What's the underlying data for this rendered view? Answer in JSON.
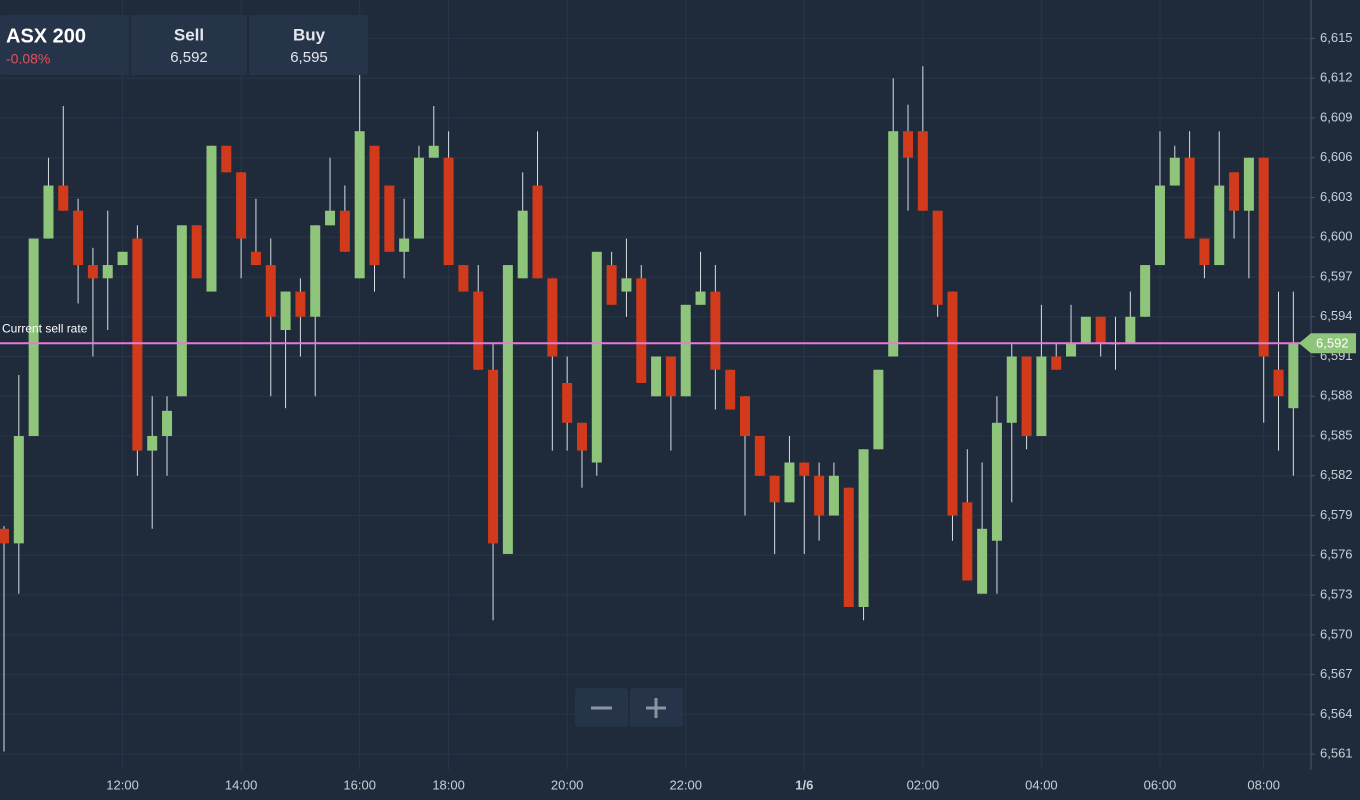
{
  "chart_data": {
    "type": "candlestick",
    "instrument": "ASX 200",
    "change": "-0.08%",
    "sell_label": "Sell",
    "sell": "6,592",
    "buy_label": "Buy",
    "buy": "6,595",
    "current_rate_label": "Current sell rate",
    "current_rate": {
      "value": 6592,
      "label": "6,592"
    },
    "up_color": "#8fc57a",
    "down_color": "#d13a1a",
    "current_rate_color": "#e879d9",
    "categories": [
      null,
      null,
      null,
      null,
      null,
      null,
      null,
      null,
      "12:00",
      null,
      null,
      null,
      null,
      null,
      null,
      null,
      "14:00",
      null,
      null,
      null,
      null,
      null,
      null,
      null,
      "16:00",
      null,
      null,
      null,
      null,
      null,
      "18:00",
      null,
      null,
      null,
      null,
      null,
      null,
      null,
      "20:00",
      null,
      null,
      null,
      null,
      null,
      null,
      null,
      "22:00",
      null,
      null,
      null,
      null,
      null,
      null,
      null,
      "1/6",
      null,
      null,
      null,
      null,
      null,
      null,
      null,
      "02:00",
      null,
      null,
      null,
      null,
      null,
      null,
      null,
      "04:00",
      null,
      null,
      null,
      null,
      null,
      null,
      null,
      "06:00",
      null,
      null,
      null,
      null,
      null,
      null,
      "08:00",
      null,
      null
    ],
    "open": [
      6578.0,
      6576.9,
      6585.0,
      6599.9,
      6603.9,
      6602.0,
      6597.9,
      6596.9,
      6597.9,
      6599.9,
      6583.9,
      6585.0,
      6588.0,
      6600.9,
      6595.9,
      6606.9,
      6604.9,
      6598.9,
      6597.9,
      6593.0,
      6595.9,
      6594.0,
      6600.9,
      6602.0,
      6596.9,
      6606.9,
      6603.9,
      6598.9,
      6599.9,
      6606.0,
      6606.0,
      6597.9,
      6595.9,
      6590.0,
      6576.1,
      6596.9,
      6603.9,
      6596.9,
      6589.0,
      6586.0,
      6583.0,
      6597.9,
      6595.9,
      6596.9,
      6588.0,
      6591.0,
      6588.0,
      6594.9,
      6595.9,
      6590.0,
      6588.0,
      6585.0,
      6582.0,
      6580.0,
      6583.0,
      6582.0,
      6579.0,
      6581.1,
      6572.1,
      6584.0,
      6591.0,
      6608.0,
      6608.0,
      6602.0,
      6595.9,
      6580.0,
      6573.1,
      6577.1,
      6586.0,
      6591.0,
      6585.0,
      6591.0,
      6591.0,
      6592.0,
      6594.0,
      6592.0,
      6592.0,
      6594.0,
      6597.9,
      6603.9,
      6606.0,
      6599.9,
      6597.9,
      6604.9,
      6602.0,
      6606.0,
      6590.0,
      6587.1
    ],
    "high": [
      6578.2,
      6589.6,
      6599.9,
      6606.0,
      6609.9,
      6602.9,
      6599.2,
      6602.0,
      6598.9,
      6600.9,
      6588.0,
      6588.0,
      6600.9,
      6600.9,
      6606.9,
      6606.9,
      6604.9,
      6602.9,
      6599.9,
      6595.9,
      6596.9,
      6600.9,
      6606.0,
      6603.9,
      6612.4,
      6606.9,
      6603.9,
      6602.9,
      6606.9,
      6609.9,
      6608.0,
      6597.9,
      6597.9,
      6592.0,
      6597.9,
      6604.9,
      6608.0,
      6596.9,
      6591.0,
      6586.0,
      6598.9,
      6598.9,
      6599.9,
      6597.9,
      6591.0,
      6591.0,
      6594.9,
      6598.9,
      6597.9,
      6590.0,
      6588.0,
      6585.0,
      6582.0,
      6585.0,
      6583.0,
      6583.0,
      6583.0,
      6581.1,
      6584.0,
      6590.0,
      6612.0,
      6610.0,
      6612.9,
      6602.0,
      6595.9,
      6584.0,
      6583.0,
      6588.0,
      6592.0,
      6591.0,
      6594.9,
      6592.0,
      6594.9,
      6594.0,
      6594.0,
      6594.0,
      6595.9,
      6597.9,
      6608.0,
      6606.9,
      6608.0,
      6599.9,
      6608.0,
      6604.9,
      6606.0,
      6606.0,
      6595.9,
      6595.9
    ],
    "low": [
      6561.2,
      6573.1,
      6585.0,
      6599.9,
      6602.0,
      6595.0,
      6591.0,
      6593.0,
      6597.9,
      6582.0,
      6578.0,
      6582.0,
      6588.0,
      6596.9,
      6595.9,
      6604.9,
      6596.9,
      6597.9,
      6588.0,
      6587.1,
      6591.0,
      6588.0,
      6600.9,
      6598.9,
      6596.9,
      6595.9,
      6598.9,
      6596.9,
      6599.9,
      6606.0,
      6597.9,
      6595.9,
      6590.0,
      6571.1,
      6576.1,
      6596.9,
      6596.9,
      6583.9,
      6583.9,
      6581.1,
      6582.0,
      6594.9,
      6594.0,
      6589.0,
      6588.0,
      6583.9,
      6588.0,
      6594.9,
      6587.0,
      6587.0,
      6579.0,
      6582.0,
      6576.1,
      6580.0,
      6576.1,
      6577.1,
      6579.0,
      6572.1,
      6571.1,
      6584.0,
      6591.0,
      6602.0,
      6602.0,
      6594.0,
      6577.1,
      6574.1,
      6573.1,
      6573.1,
      6580.0,
      6584.0,
      6585.0,
      6590.0,
      6591.0,
      6592.0,
      6591.0,
      6590.0,
      6592.0,
      6594.0,
      6597.9,
      6603.9,
      6599.9,
      6596.9,
      6597.9,
      6599.9,
      6596.9,
      6586.0,
      6583.9,
      6582.0
    ],
    "close": [
      6576.9,
      6585.0,
      6599.9,
      6603.9,
      6602.0,
      6597.9,
      6596.9,
      6597.9,
      6598.9,
      6583.9,
      6585.0,
      6586.9,
      6600.9,
      6596.9,
      6606.9,
      6604.9,
      6599.9,
      6597.9,
      6594.0,
      6595.9,
      6594.0,
      6600.9,
      6602.0,
      6598.9,
      6608.0,
      6597.9,
      6598.9,
      6599.9,
      6606.0,
      6606.9,
      6597.9,
      6595.9,
      6590.0,
      6576.9,
      6597.9,
      6602.0,
      6596.9,
      6591.0,
      6586.0,
      6583.9,
      6598.9,
      6594.9,
      6596.9,
      6589.0,
      6591.0,
      6588.0,
      6594.9,
      6595.9,
      6590.0,
      6587.0,
      6585.0,
      6582.0,
      6580.0,
      6583.0,
      6582.0,
      6579.0,
      6582.0,
      6572.1,
      6584.0,
      6590.0,
      6608.0,
      6606.0,
      6602.0,
      6594.9,
      6579.0,
      6574.1,
      6578.0,
      6586.0,
      6591.0,
      6585.0,
      6591.0,
      6590.0,
      6592.0,
      6594.0,
      6592.0,
      6592.0,
      6594.0,
      6597.9,
      6603.9,
      6606.0,
      6599.9,
      6597.9,
      6603.9,
      6602.0,
      6606.0,
      6591.0,
      6588.0,
      6592.0
    ],
    "ylim": [
      6559.8,
      6617.9
    ],
    "yticks": [
      {
        "value": 6561,
        "label": "6,561"
      },
      {
        "value": 6564,
        "label": "6,564"
      },
      {
        "value": 6567,
        "label": "6,567"
      },
      {
        "value": 6570,
        "label": "6,570"
      },
      {
        "value": 6573,
        "label": "6,573"
      },
      {
        "value": 6576,
        "label": "6,576"
      },
      {
        "value": 6579,
        "label": "6,579"
      },
      {
        "value": 6582,
        "label": "6,582"
      },
      {
        "value": 6585,
        "label": "6,585"
      },
      {
        "value": 6588,
        "label": "6,588"
      },
      {
        "value": 6591,
        "label": "6,591"
      },
      {
        "value": 6594,
        "label": "6,594"
      },
      {
        "value": 6597,
        "label": "6,597"
      },
      {
        "value": 6600,
        "label": "6,600"
      },
      {
        "value": 6603,
        "label": "6,603"
      },
      {
        "value": 6606,
        "label": "6,606"
      },
      {
        "value": 6609,
        "label": "6,609"
      },
      {
        "value": 6612,
        "label": "6,612"
      },
      {
        "value": 6615,
        "label": "6,615"
      }
    ],
    "grid": true
  }
}
